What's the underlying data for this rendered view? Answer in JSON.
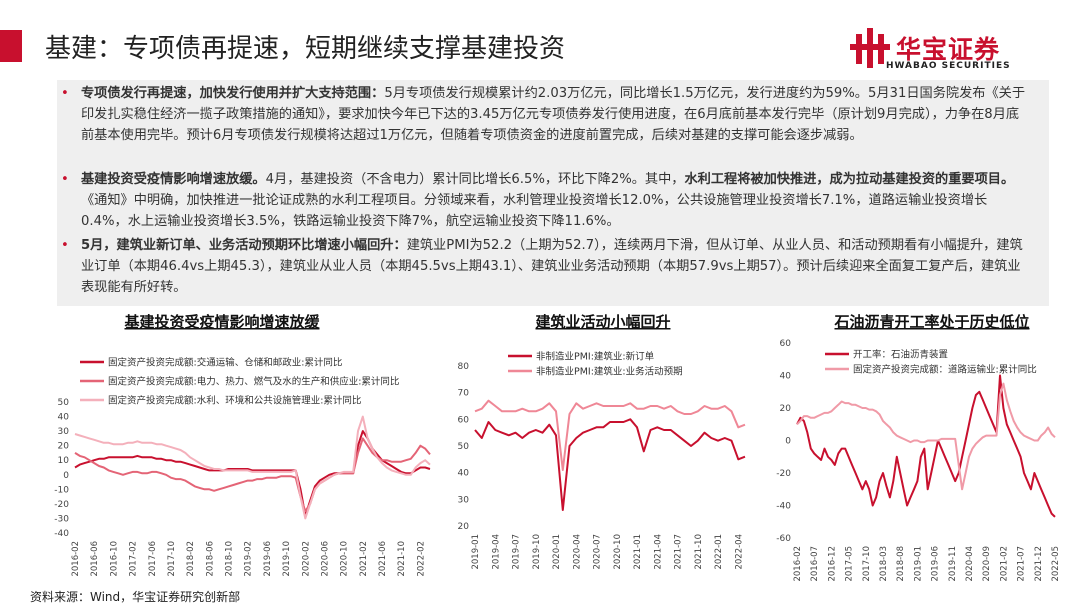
{
  "header": {
    "title": "基建：专项债再提速，短期继续支撑基建投资",
    "logo": "华宝证券",
    "logo_sub": "HWABAO SECURITIES"
  },
  "bullets": [
    {
      "runs": [
        {
          "text": "专项债发行再提速，加快发行使用并扩大支持范围：",
          "bold": true
        },
        {
          "text": "5月专项债发行规模累计约2.03万亿元，同比增长1.5万亿元，发行进度约为59%。5月31日国务院发布《关于印发扎实稳住经济一揽子政策措施的通知》，要求加快今年已下达的3.45万亿元专项债券发行使用进度，在6月底前基本发行完毕（原计划9月完成），力争在8月底前基本使用完毕。预计6月专项债发行规模将达超过1万亿元，但随着专项债资金的进度前置完成，后续对基建的支撑可能会逐步减弱。",
          "bold": false
        }
      ]
    },
    {
      "runs": [
        {
          "text": "基建投资受疫情影响增速放缓。",
          "bold": true
        },
        {
          "text": "4月，基建投资（不含电力）累计同比增长6.5%，环比下降2%。其中，",
          "bold": false
        },
        {
          "text": "水利工程将被加快推进，成为拉动基建投资的重要项目。",
          "bold": true
        },
        {
          "text": "《通知》中明确，加快推进一批论证成熟的水利工程项目。分领域来看，水利管理业投资增长12.0%，公共设施管理业投资增长7.1%，道路运输业投资增长0.4%，水上运输业投资增长3.5%，铁路运输业投资下降7%，航空运输业投资下降11.6%。",
          "bold": false
        }
      ]
    },
    {
      "runs": [
        {
          "text": "5月，建筑业新订单、业务活动预期环比增速小幅回升：",
          "bold": true
        },
        {
          "text": "建筑业PMI为52.2（上期为52.7），连续两月下滑，但从订单、从业人员、和活动预期看有小幅提升，建筑业订单（本期46.4vs上期45.3），建筑业从业人员（本期45.5vs上期43.1）、建筑业业务活动预期（本期57.9vs上期57）。预计后续迎来全面复工复产后，建筑业表现能有所好转。",
          "bold": false
        }
      ]
    }
  ],
  "source": "资料来源：Wind，华宝证券研究创新部",
  "chart_data": [
    {
      "type": "line",
      "title": "基建投资受疫情影响增速放缓",
      "ylim": [
        -40,
        50
      ],
      "yticks": [
        -40,
        -30,
        -20,
        -10,
        0,
        10,
        20,
        30,
        40,
        50
      ],
      "grid": false,
      "categories": [
        "2016-02",
        null,
        null,
        null,
        "2016-06",
        null,
        null,
        null,
        "2016-10",
        null,
        null,
        null,
        "2017-02",
        null,
        null,
        null,
        "2017-06",
        null,
        null,
        null,
        "2017-10",
        null,
        null,
        null,
        "2018-02",
        null,
        null,
        null,
        "2018-06",
        null,
        null,
        null,
        "2018-10",
        null,
        null,
        null,
        "2019-02",
        null,
        null,
        null,
        "2019-06",
        null,
        null,
        null,
        "2019-10",
        null,
        null,
        null,
        "2020-02",
        null,
        null,
        null,
        "2020-06",
        null,
        null,
        null,
        "2020-10",
        null,
        null,
        null,
        "2021-02",
        null,
        null,
        null,
        "2021-06",
        null,
        null,
        null,
        "2021-10",
        null,
        null,
        null,
        "2022-02",
        null,
        null
      ],
      "series": [
        {
          "name": "固定资产投资完成额:交通运输、仓储和邮政业:累计同比",
          "color": "#c8102e",
          "values": [
            5,
            7,
            8,
            9,
            10,
            11,
            11,
            12,
            12,
            12,
            12,
            12,
            12,
            13,
            12,
            12,
            12,
            11,
            11,
            10,
            10,
            9,
            9,
            8,
            7,
            6,
            5,
            4,
            3,
            3,
            3,
            3,
            4,
            4,
            4,
            4,
            4,
            3,
            3,
            3,
            3,
            3,
            3,
            3,
            3,
            3,
            3,
            -10,
            -28,
            -18,
            -8,
            -4,
            -2,
            0,
            1,
            1,
            1,
            1,
            1,
            20,
            30,
            25,
            18,
            14,
            10,
            8,
            6,
            4,
            2,
            1,
            1,
            3,
            5,
            5,
            4
          ]
        },
        {
          "name": "固定资产投资完成额:电力、热力、燃气及水的生产和供应业:累计同比",
          "color": "#e46476",
          "values": [
            15,
            13,
            12,
            10,
            8,
            6,
            5,
            3,
            2,
            1,
            0,
            1,
            2,
            2,
            1,
            1,
            2,
            2,
            1,
            0,
            -2,
            -3,
            -3,
            -4,
            -6,
            -8,
            -9,
            -10,
            -10,
            -11,
            -10,
            -9,
            -8,
            -7,
            -6,
            -5,
            -4,
            -4,
            -3,
            -3,
            -2,
            -2,
            -2,
            -1,
            -1,
            -1,
            -2,
            -15,
            -25,
            -20,
            -10,
            -6,
            -4,
            -2,
            0,
            1,
            1,
            1,
            1,
            15,
            25,
            20,
            15,
            12,
            10,
            10,
            9,
            9,
            9,
            10,
            11,
            15,
            20,
            18,
            14
          ]
        },
        {
          "name": "固定资产投资完成额:水利、环境和公共设施管理业:累计同比",
          "color": "#f4b0bb",
          "values": [
            28,
            27,
            26,
            25,
            24,
            23,
            22,
            22,
            21,
            21,
            21,
            22,
            22,
            23,
            22,
            22,
            22,
            21,
            21,
            20,
            19,
            18,
            17,
            15,
            12,
            10,
            8,
            6,
            5,
            4,
            4,
            3,
            3,
            3,
            3,
            3,
            3,
            2,
            2,
            2,
            2,
            2,
            2,
            2,
            2,
            2,
            3,
            -15,
            -30,
            -20,
            -10,
            -6,
            -4,
            -2,
            0,
            1,
            2,
            2,
            2,
            30,
            40,
            25,
            18,
            12,
            8,
            5,
            3,
            2,
            1,
            0,
            0,
            5,
            8,
            10,
            7
          ]
        }
      ]
    },
    {
      "type": "line",
      "title": "建筑业活动小幅回升",
      "ylim": [
        20,
        80
      ],
      "yticks": [
        20,
        30,
        40,
        50,
        60,
        70,
        80
      ],
      "grid": false,
      "categories": [
        "2019-01",
        null,
        null,
        "2019-04",
        null,
        null,
        "2019-07",
        null,
        null,
        "2019-10",
        null,
        null,
        "2020-01",
        null,
        null,
        "2020-04",
        null,
        null,
        "2020-07",
        null,
        null,
        "2020-10",
        null,
        null,
        "2021-01",
        null,
        null,
        "2021-04",
        null,
        null,
        "2021-07",
        null,
        null,
        "2021-10",
        null,
        null,
        "2022-01",
        null,
        null,
        "2022-04",
        null
      ],
      "series": [
        {
          "name": "非制造业PMI:建筑业:新订单",
          "color": "#c8102e",
          "values": [
            56,
            53,
            59,
            56,
            55,
            54,
            55,
            53,
            55,
            56,
            55,
            58,
            54,
            26,
            50,
            53,
            55,
            56,
            57,
            57,
            59,
            59,
            59,
            60,
            57,
            48,
            56,
            57,
            56,
            56,
            54,
            52,
            50,
            52,
            55,
            53,
            52,
            53,
            52,
            45,
            46
          ]
        },
        {
          "name": "非制造业PMI:建筑业:业务活动预期",
          "color": "#ef8796",
          "values": [
            63,
            64,
            67,
            65,
            63,
            63,
            63,
            64,
            63,
            63,
            64,
            66,
            63,
            41,
            62,
            66,
            64,
            65,
            66,
            65,
            65,
            65,
            65,
            66,
            64,
            64,
            65,
            65,
            64,
            65,
            63,
            62,
            62,
            63,
            65,
            64,
            64,
            65,
            63,
            57,
            58
          ]
        }
      ]
    },
    {
      "type": "line",
      "title": "石油沥青开工率处于历史低位",
      "ylim": [
        -60,
        60
      ],
      "yticks": [
        -60,
        -40,
        -20,
        0,
        20,
        40,
        60
      ],
      "grid": false,
      "categories": [
        "2016-02",
        null,
        null,
        null,
        null,
        "2016-07",
        null,
        null,
        null,
        null,
        "2016-12",
        null,
        null,
        null,
        null,
        "2017-05",
        null,
        null,
        null,
        null,
        "2017-10",
        null,
        null,
        null,
        null,
        "2018-03",
        null,
        null,
        null,
        null,
        "2018-08",
        null,
        null,
        null,
        null,
        "2019-01",
        null,
        null,
        null,
        null,
        "2019-06",
        null,
        null,
        null,
        null,
        "2019-11",
        null,
        null,
        null,
        null,
        "2020-04",
        null,
        null,
        null,
        null,
        "2020-09",
        null,
        null,
        null,
        null,
        "2021-02",
        null,
        null,
        null,
        null,
        "2021-07",
        null,
        null,
        null,
        null,
        "2021-12",
        null,
        null,
        null,
        null,
        "2022-05"
      ],
      "series": [
        {
          "name": "开工率：石油沥青装置",
          "color": "#c8102e",
          "values": [
            10,
            14,
            12,
            5,
            -5,
            -8,
            -10,
            -12,
            -5,
            -10,
            -12,
            -15,
            -8,
            -5,
            -5,
            -10,
            -15,
            -20,
            -25,
            -30,
            -25,
            -30,
            -40,
            -35,
            -25,
            -20,
            -28,
            -35,
            -25,
            -10,
            -20,
            -30,
            -40,
            -35,
            -30,
            -25,
            -10,
            -5,
            -30,
            -20,
            -10,
            0,
            -5,
            -10,
            -15,
            -20,
            -25,
            -20,
            -10,
            0,
            10,
            20,
            28,
            30,
            25,
            20,
            15,
            10,
            5,
            40,
            20,
            10,
            5,
            0,
            -5,
            -10,
            -20,
            -25,
            -30,
            -20,
            -25,
            -30,
            -35,
            -40,
            -45,
            -47
          ]
        },
        {
          "name": "固定资产投资完成额：道路运输业:累计同比",
          "color": "#f09aa7",
          "values": [
            10,
            12,
            15,
            15,
            14,
            14,
            15,
            16,
            17,
            17,
            18,
            20,
            22,
            24,
            23,
            23,
            22,
            22,
            21,
            20,
            20,
            19,
            19,
            18,
            16,
            12,
            10,
            8,
            5,
            3,
            2,
            1,
            0,
            -1,
            0,
            0,
            -1,
            -1,
            0,
            0,
            0,
            0,
            1,
            1,
            1,
            1,
            1,
            -15,
            -30,
            -20,
            -10,
            -5,
            -2,
            0,
            2,
            3,
            3,
            3,
            3,
            28,
            35,
            25,
            18,
            12,
            8,
            5,
            3,
            2,
            1,
            0,
            0,
            3,
            5,
            8,
            4,
            2
          ]
        }
      ]
    }
  ]
}
